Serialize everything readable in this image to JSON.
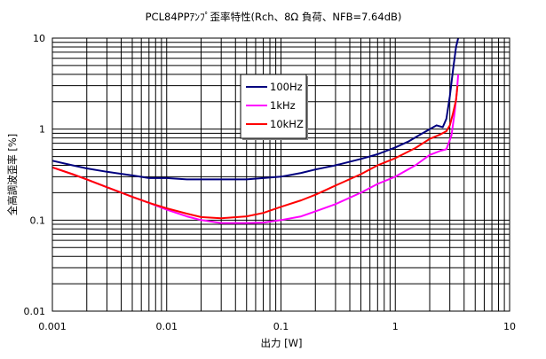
{
  "chart_data": {
    "type": "line",
    "title": "PCL84PPｱﾝﾌﾟ歪率特性(Rch、8Ω 負荷、NFB=7.64dB)",
    "xlabel": "出力 [W]",
    "ylabel": "全高調波歪率 [%]",
    "xscale": "log",
    "yscale": "log",
    "xlim": [
      0.001,
      10
    ],
    "ylim": [
      0.01,
      10
    ],
    "grid": true,
    "legend_position": "upper-center",
    "x_tick_labels": [
      "0.001",
      "0.01",
      "0.1",
      "1",
      "10"
    ],
    "y_tick_labels": [
      "0.01",
      "0.1",
      "1",
      "10"
    ],
    "series": [
      {
        "name": "100Hz",
        "color": "#00007f",
        "points": [
          [
            0.001,
            0.45
          ],
          [
            0.0015,
            0.4
          ],
          [
            0.002,
            0.37
          ],
          [
            0.003,
            0.34
          ],
          [
            0.005,
            0.31
          ],
          [
            0.007,
            0.29
          ],
          [
            0.01,
            0.29
          ],
          [
            0.015,
            0.28
          ],
          [
            0.02,
            0.28
          ],
          [
            0.03,
            0.28
          ],
          [
            0.05,
            0.28
          ],
          [
            0.07,
            0.29
          ],
          [
            0.1,
            0.3
          ],
          [
            0.15,
            0.33
          ],
          [
            0.2,
            0.36
          ],
          [
            0.3,
            0.4
          ],
          [
            0.5,
            0.47
          ],
          [
            0.7,
            0.53
          ],
          [
            1.0,
            0.63
          ],
          [
            1.3,
            0.73
          ],
          [
            1.6,
            0.85
          ],
          [
            2.0,
            1.0
          ],
          [
            2.3,
            1.1
          ],
          [
            2.6,
            1.05
          ],
          [
            2.8,
            1.3
          ],
          [
            3.0,
            2.3
          ],
          [
            3.2,
            4.5
          ],
          [
            3.4,
            8.0
          ],
          [
            3.55,
            11.0
          ]
        ]
      },
      {
        "name": "1kHz",
        "color": "#ff00ff",
        "points": [
          [
            0.001,
            0.38
          ],
          [
            0.0015,
            0.32
          ],
          [
            0.002,
            0.28
          ],
          [
            0.003,
            0.23
          ],
          [
            0.005,
            0.18
          ],
          [
            0.007,
            0.155
          ],
          [
            0.01,
            0.13
          ],
          [
            0.015,
            0.11
          ],
          [
            0.02,
            0.1
          ],
          [
            0.03,
            0.093
          ],
          [
            0.05,
            0.093
          ],
          [
            0.07,
            0.094
          ],
          [
            0.1,
            0.1
          ],
          [
            0.15,
            0.11
          ],
          [
            0.2,
            0.125
          ],
          [
            0.3,
            0.15
          ],
          [
            0.5,
            0.2
          ],
          [
            0.7,
            0.25
          ],
          [
            1.0,
            0.3
          ],
          [
            1.5,
            0.4
          ],
          [
            2.0,
            0.52
          ],
          [
            2.5,
            0.58
          ],
          [
            2.8,
            0.6
          ],
          [
            3.1,
            0.85
          ],
          [
            3.3,
            1.5
          ],
          [
            3.45,
            2.5
          ],
          [
            3.55,
            4.0
          ]
        ]
      },
      {
        "name": "10kHZ",
        "color": "#ff0000",
        "points": [
          [
            0.001,
            0.38
          ],
          [
            0.0015,
            0.32
          ],
          [
            0.002,
            0.28
          ],
          [
            0.003,
            0.23
          ],
          [
            0.005,
            0.18
          ],
          [
            0.007,
            0.155
          ],
          [
            0.01,
            0.135
          ],
          [
            0.015,
            0.118
          ],
          [
            0.02,
            0.108
          ],
          [
            0.03,
            0.105
          ],
          [
            0.05,
            0.11
          ],
          [
            0.07,
            0.12
          ],
          [
            0.1,
            0.14
          ],
          [
            0.15,
            0.165
          ],
          [
            0.2,
            0.19
          ],
          [
            0.3,
            0.24
          ],
          [
            0.5,
            0.32
          ],
          [
            0.7,
            0.4
          ],
          [
            1.0,
            0.48
          ],
          [
            1.5,
            0.62
          ],
          [
            2.0,
            0.78
          ],
          [
            2.5,
            0.88
          ],
          [
            2.8,
            0.95
          ],
          [
            3.0,
            1.1
          ],
          [
            3.2,
            1.5
          ],
          [
            3.4,
            2.1
          ],
          [
            3.5,
            3.0
          ]
        ]
      }
    ]
  }
}
